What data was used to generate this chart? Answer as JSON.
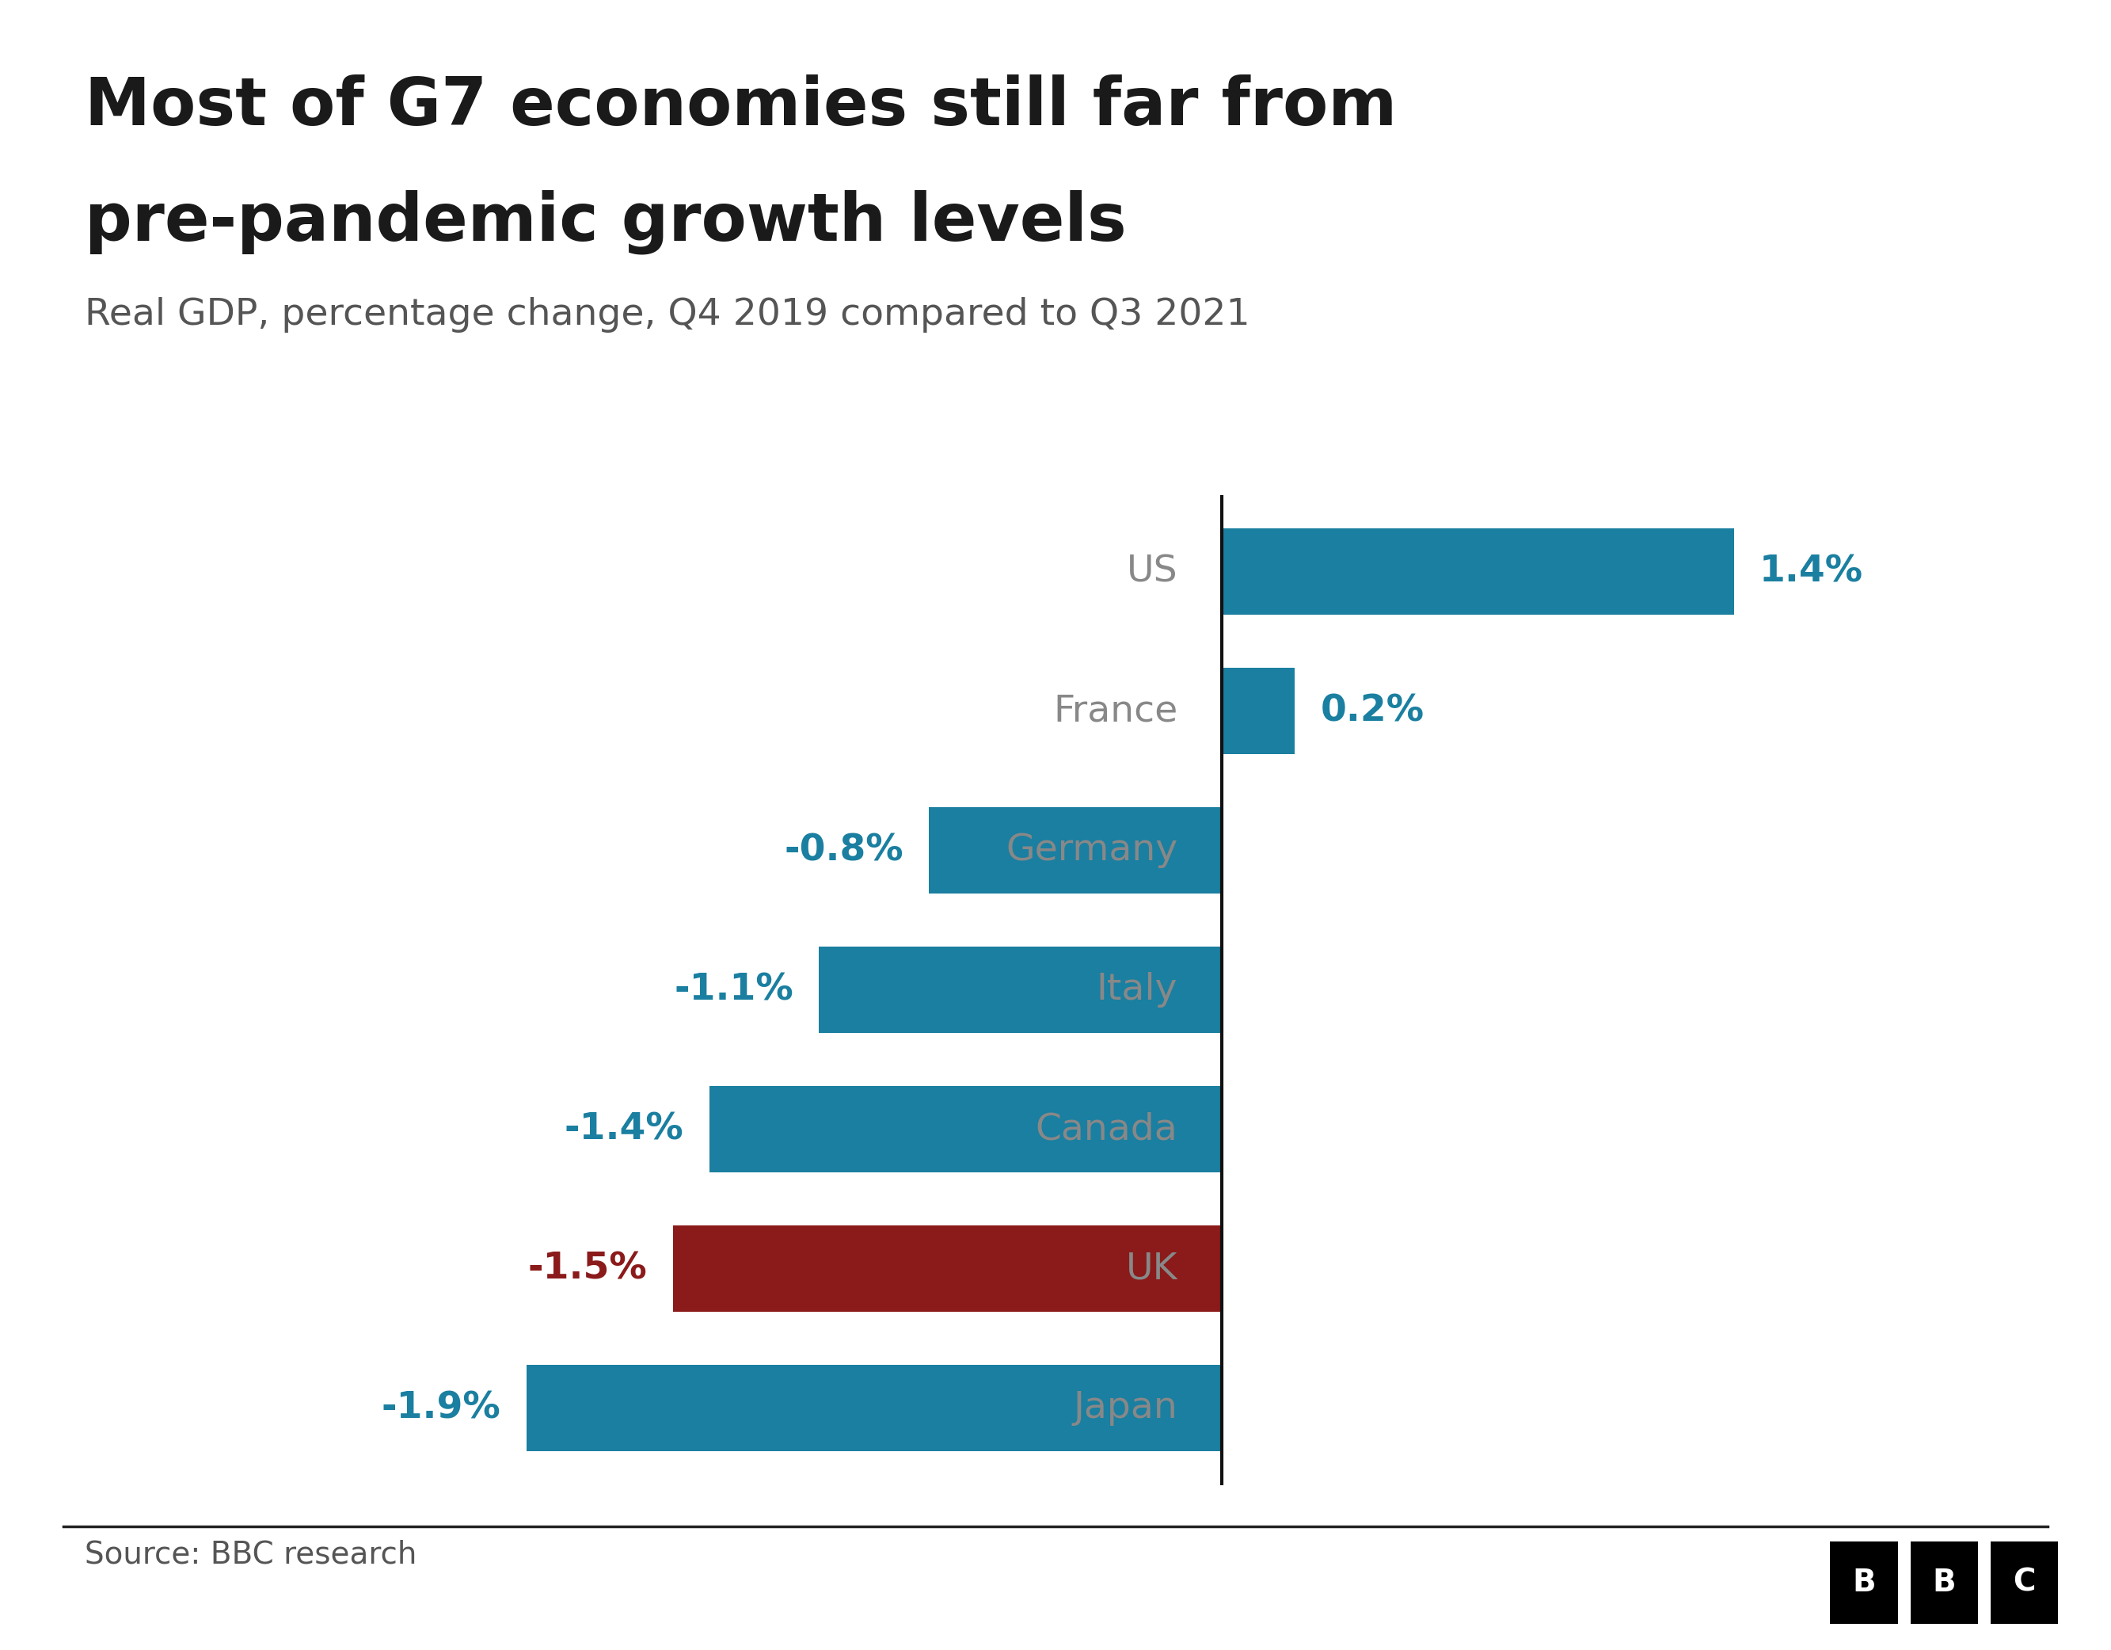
{
  "title_line1": "Most of G7 economies still far from",
  "title_line2": "pre-pandemic growth levels",
  "subtitle": "Real GDP, percentage change, Q4 2019 compared to Q3 2021",
  "source": "Source: BBC research",
  "categories": [
    "US",
    "France",
    "Germany",
    "Italy",
    "Canada",
    "UK",
    "Japan"
  ],
  "values": [
    1.4,
    0.2,
    -0.8,
    -1.1,
    -1.4,
    -1.5,
    -1.9
  ],
  "bar_colors": [
    "#1a7fa0",
    "#1a7fa0",
    "#1a7fa0",
    "#1a7fa0",
    "#1a7fa0",
    "#8b1a1a",
    "#1a7fa0"
  ],
  "label_colors": [
    "#1a7fa0",
    "#1a7fa0",
    "#1a7fa0",
    "#1a7fa0",
    "#1a7fa0",
    "#8b1a1a",
    "#1a7fa0"
  ],
  "background_color": "#ffffff",
  "title_color": "#1a1a1a",
  "subtitle_color": "#555555",
  "category_label_color": "#888888",
  "xlim": [
    -2.3,
    2.2
  ],
  "bar_height": 0.62
}
